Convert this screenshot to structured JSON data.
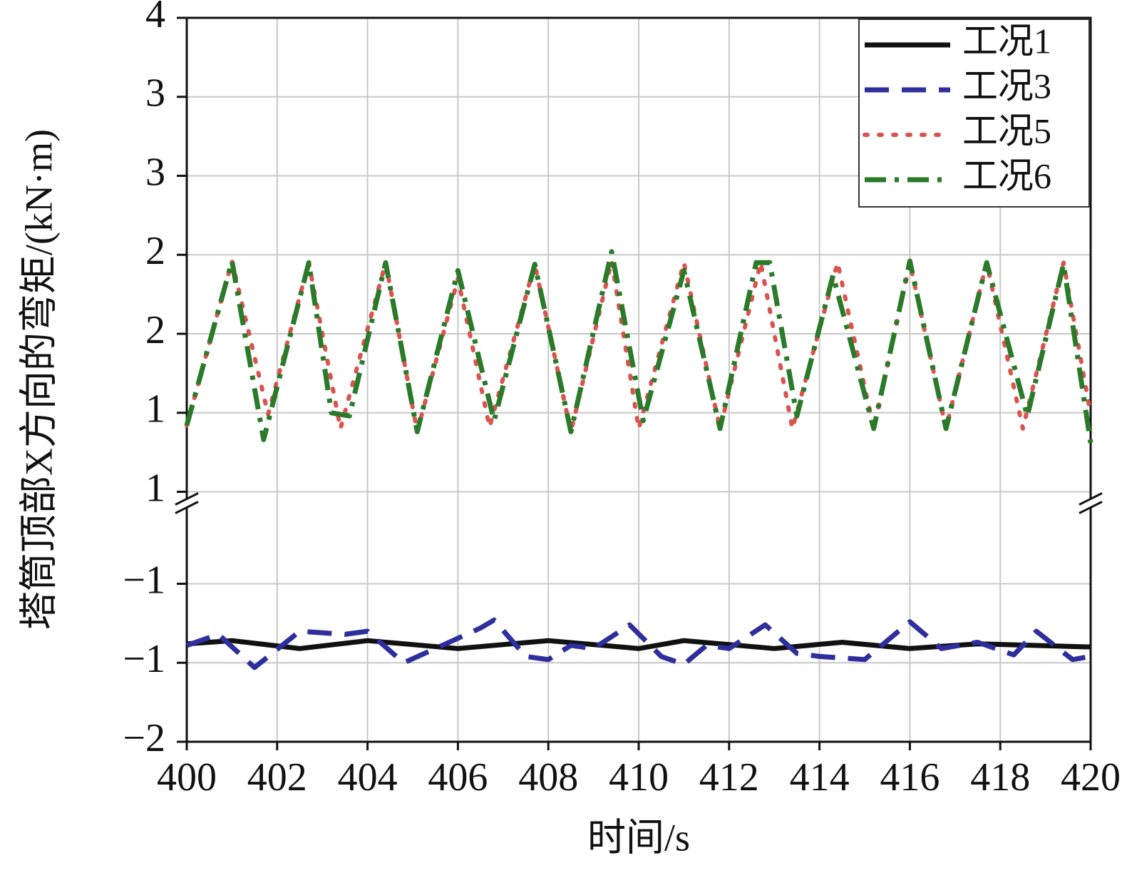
{
  "chart_data": {
    "type": "line",
    "xlabel": "时间/s",
    "ylabel": "塔筒顶部X方向的弯矩/(kN·m)",
    "xlim": [
      400,
      420
    ],
    "xticks": [
      400,
      402,
      404,
      406,
      408,
      410,
      412,
      414,
      416,
      418,
      420
    ],
    "ylim": [
      -2,
      4
    ],
    "ybreak": [
      -1,
      1
    ],
    "yticks": [
      {
        "value": -2,
        "label": "−2"
      },
      {
        "value": -1.5,
        "label": "−1"
      },
      {
        "value": -1,
        "label": "−1"
      },
      1,
      {
        "value": 1.5,
        "label": "1"
      },
      2,
      {
        "value": 2.5,
        "label": "2"
      },
      3,
      {
        "value": 3.5,
        "label": "3"
      },
      4
    ],
    "grid": true,
    "legend": "upper right",
    "series": [
      {
        "name": "工况1",
        "color": "#111111",
        "linestyle": "solid",
        "x": [
          400,
          401,
          402.5,
          404,
          406,
          408,
          410,
          411,
          413,
          414.5,
          416,
          417.5,
          420
        ],
        "values": [
          -1.38,
          -1.36,
          -1.41,
          -1.36,
          -1.41,
          -1.36,
          -1.41,
          -1.36,
          -1.41,
          -1.37,
          -1.41,
          -1.38,
          -1.4
        ]
      },
      {
        "name": "工况3",
        "color": "#2e2e9c",
        "linestyle": "dashed",
        "x": [
          400,
          400.7,
          401.5,
          402.5,
          403.5,
          404,
          404.8,
          405.5,
          406.5,
          406.8,
          407.5,
          408,
          408.5,
          409,
          409.8,
          410.5,
          411,
          411.5,
          412,
          412.8,
          413.5,
          414,
          415,
          416,
          416.7,
          417.5,
          418.3,
          418.8,
          419.6,
          420
        ],
        "values": [
          -1.39,
          -1.32,
          -1.53,
          -1.3,
          -1.32,
          -1.3,
          -1.5,
          -1.41,
          -1.28,
          -1.23,
          -1.46,
          -1.48,
          -1.39,
          -1.41,
          -1.26,
          -1.46,
          -1.51,
          -1.39,
          -1.41,
          -1.26,
          -1.44,
          -1.46,
          -1.48,
          -1.24,
          -1.41,
          -1.37,
          -1.45,
          -1.3,
          -1.48,
          -1.46
        ]
      },
      {
        "name": "工况5",
        "color": "#d9534f",
        "linestyle": "dotted",
        "x": [
          400,
          401.0,
          401.8,
          402.7,
          403.4,
          404.4,
          405.1,
          406.0,
          406.7,
          407.7,
          408.5,
          409.4,
          410.0,
          411.0,
          411.8,
          412.7,
          413.4,
          414.4,
          415.2,
          416.0,
          416.8,
          417.7,
          418.5,
          419.4,
          420
        ],
        "values": [
          1.42,
          2.46,
          1.49,
          2.45,
          1.4,
          2.45,
          1.38,
          2.35,
          1.41,
          2.44,
          1.38,
          2.46,
          1.4,
          2.45,
          1.4,
          2.45,
          1.4,
          2.45,
          1.4,
          2.45,
          1.4,
          2.45,
          1.4,
          2.45,
          1.49
        ]
      },
      {
        "name": "工况6",
        "color": "#2a7a2a",
        "linestyle": "dashdot",
        "x": [
          400,
          401.0,
          401.7,
          402.7,
          403.2,
          403.6,
          404.4,
          405.1,
          406.0,
          406.8,
          407.7,
          408.5,
          409.4,
          410.1,
          411.0,
          411.8,
          412.6,
          412.9,
          413.5,
          414.3,
          415.2,
          416.0,
          416.8,
          417.7,
          418.6,
          419.4,
          420
        ],
        "values": [
          1.42,
          2.46,
          1.33,
          2.45,
          1.5,
          1.48,
          2.45,
          1.38,
          2.4,
          1.45,
          2.44,
          1.38,
          2.52,
          1.45,
          2.4,
          1.4,
          2.45,
          2.45,
          1.48,
          2.37,
          1.4,
          2.46,
          1.4,
          2.45,
          1.48,
          2.44,
          1.31
        ]
      }
    ]
  }
}
